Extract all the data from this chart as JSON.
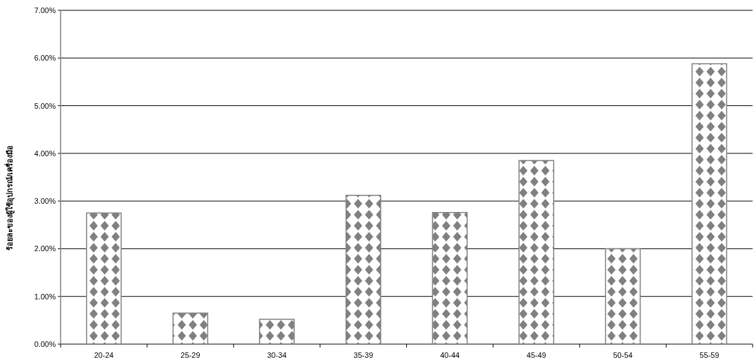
{
  "chart_data": {
    "type": "bar",
    "ylabel": "ร้อยละของผู้ใช้อุปกรณ์/เครื่องมือ",
    "categories": [
      "20-24",
      "25-29",
      "30-34",
      "35-39",
      "40-44",
      "45-49",
      "50-54",
      "55-59"
    ],
    "values": [
      2.75,
      0.65,
      0.52,
      3.12,
      2.76,
      3.85,
      2.0,
      5.88
    ],
    "color": "#808080",
    "ylim": [
      0,
      7
    ],
    "yticks": [
      {
        "value": 0,
        "label": "0.00%"
      },
      {
        "value": 1,
        "label": "1.00%"
      },
      {
        "value": 2,
        "label": "2.00%"
      },
      {
        "value": 3,
        "label": "3.00%"
      },
      {
        "value": 4,
        "label": "4.00%"
      },
      {
        "value": 5,
        "label": "5.00%"
      },
      {
        "value": 6,
        "label": "6.00%"
      },
      {
        "value": 7,
        "label": "7.00%"
      }
    ],
    "grid": "y"
  }
}
